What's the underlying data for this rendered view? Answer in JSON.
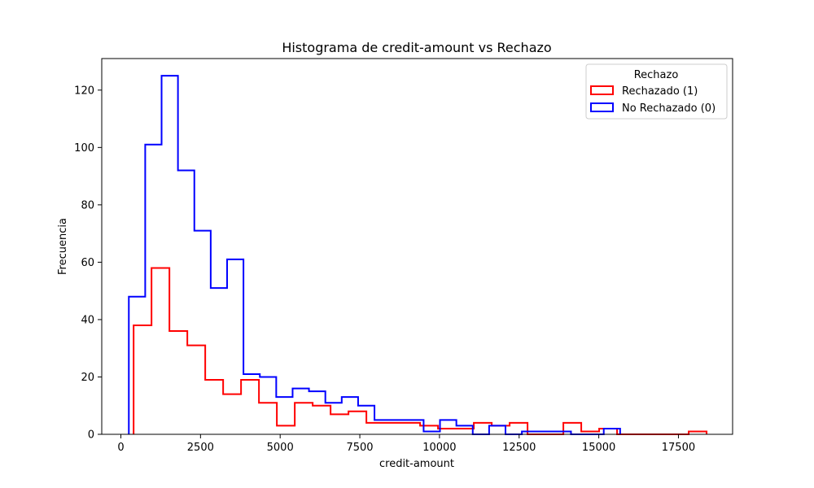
{
  "chart_data": {
    "type": "histogram",
    "title": "Histograma de credit-amount vs Rechazo",
    "xlabel": "credit-amount",
    "ylabel": "Frecuencia",
    "xlim": [
      -600,
      19200
    ],
    "ylim": [
      0,
      131
    ],
    "xticks": [
      0,
      2500,
      5000,
      7500,
      10000,
      12500,
      15000,
      17500
    ],
    "yticks": [
      0,
      20,
      40,
      60,
      80,
      100,
      120
    ],
    "legend": {
      "title": "Rechazo",
      "position": "upper right"
    },
    "series": [
      {
        "name": "Rechazado (1)",
        "color": "#ff0000",
        "bin_edges": [
          400,
          962,
          1524,
          2086,
          2648,
          3210,
          3772,
          4334,
          4896,
          5458,
          6020,
          6582,
          7144,
          7706,
          8268,
          8830,
          9392,
          9954,
          10516,
          11078,
          11640,
          12202,
          12764,
          13326,
          13888,
          14450,
          15012,
          15574,
          16136,
          16698,
          17260,
          17822,
          18384
        ],
        "counts": [
          38,
          58,
          36,
          31,
          19,
          14,
          19,
          11,
          3,
          11,
          10,
          7,
          8,
          4,
          4,
          4,
          3,
          2,
          2,
          4,
          3,
          4,
          0,
          0,
          4,
          1,
          2,
          0,
          0,
          0,
          0,
          1
        ]
      },
      {
        "name": "No Rechazado (0)",
        "color": "#0000ff",
        "bin_edges": [
          250,
          764,
          1278,
          1792,
          2306,
          2820,
          3334,
          3848,
          4362,
          4876,
          5390,
          5904,
          6418,
          6932,
          7446,
          7960,
          8474,
          8988,
          9502,
          10016,
          10530,
          11044,
          11558,
          12072,
          12586,
          13100,
          13614,
          14128,
          14642,
          15156,
          15670
        ],
        "counts": [
          48,
          101,
          125,
          92,
          71,
          51,
          61,
          21,
          20,
          13,
          16,
          15,
          11,
          13,
          10,
          5,
          5,
          5,
          1,
          5,
          3,
          0,
          3,
          0,
          1,
          1,
          1,
          0,
          0,
          2
        ]
      }
    ]
  }
}
